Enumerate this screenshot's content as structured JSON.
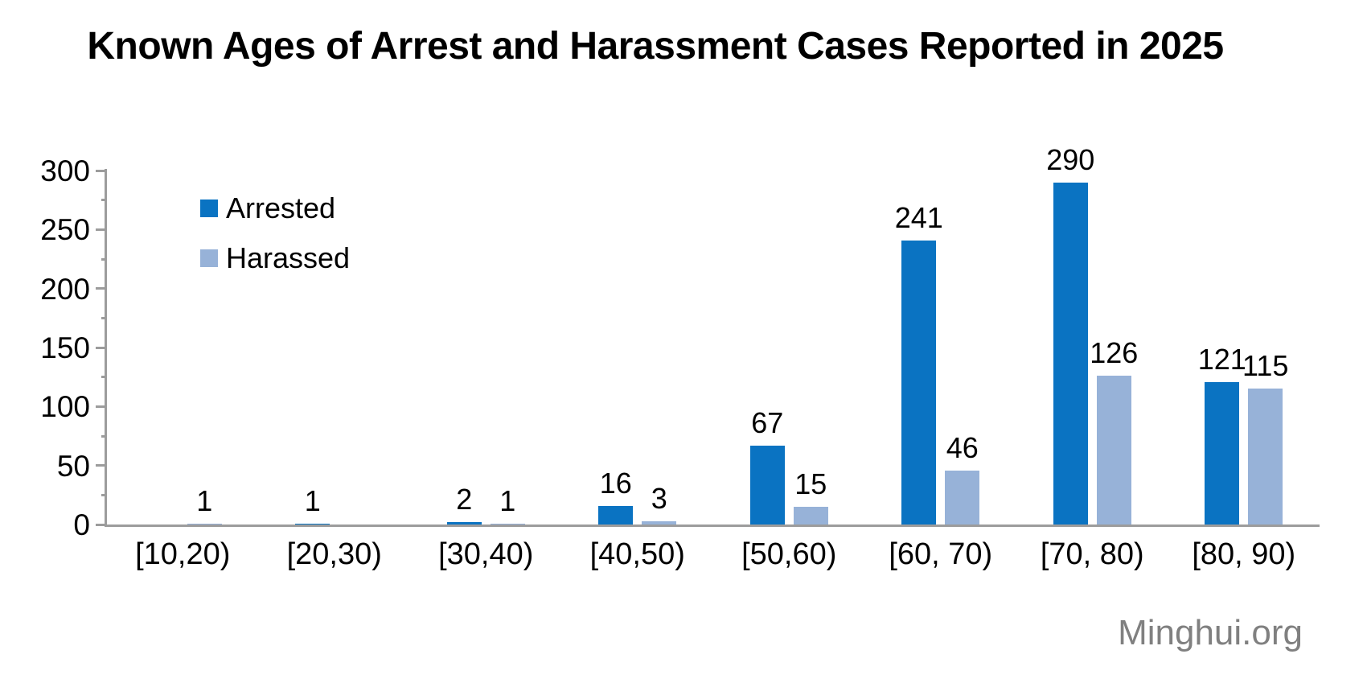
{
  "title": "Known Ages of Arrest and Harassment Cases Reported in 2025",
  "watermark": "Minghui.org",
  "chart_data": {
    "type": "bar",
    "title": "Known Ages of Arrest and Harassment Cases Reported in 2025",
    "categories": [
      "[10,20)",
      "[20,30)",
      "[30,40)",
      "[40,50)",
      "[50,60)",
      "[60, 70)",
      "[70, 80)",
      "[80, 90)"
    ],
    "series": [
      {
        "name": "Arrested",
        "color": "#0a73c2",
        "values": [
          0,
          1,
          2,
          16,
          67,
          241,
          290,
          121
        ]
      },
      {
        "name": "Harassed",
        "color": "#97b2d8",
        "values": [
          1,
          0,
          1,
          3,
          15,
          46,
          126,
          115
        ]
      }
    ],
    "xlabel": "",
    "ylabel": "",
    "ylim": [
      0,
      300
    ],
    "y_major_ticks": [
      0,
      50,
      100,
      150,
      200,
      250,
      300
    ],
    "y_minor_step": 25,
    "grid": "off",
    "legend_position": "inside-top-left",
    "data_labels": "value above each bar; zero values have no bar and no label",
    "axis_color": "#9c9c9c",
    "label_color": "#000000",
    "watermark_color": "#808080"
  }
}
